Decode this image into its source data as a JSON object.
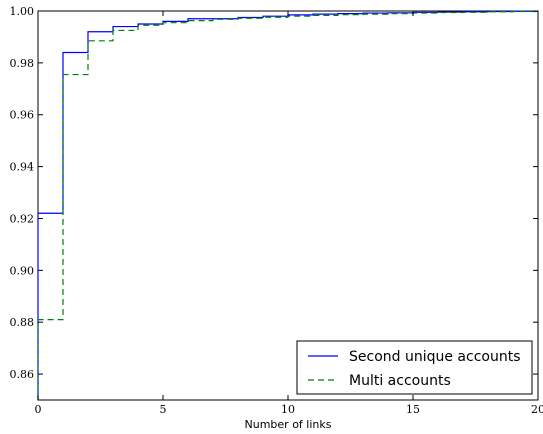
{
  "chart_data": {
    "type": "line",
    "title": "",
    "xlabel": "Number of links",
    "ylabel": "",
    "xlim": [
      0,
      20
    ],
    "ylim": [
      0.85,
      1.0
    ],
    "xticks": [
      0,
      5,
      10,
      15,
      20
    ],
    "xtick_labels": [
      "0",
      "5",
      "10",
      "15",
      "20"
    ],
    "yticks": [
      0.86,
      0.88,
      0.9,
      0.92,
      0.94,
      0.96,
      0.98,
      1.0
    ],
    "ytick_labels": [
      "0.86",
      "0.88",
      "0.90",
      "0.92",
      "0.94",
      "0.96",
      "0.98",
      "1.00"
    ],
    "grid": false,
    "legend_position": "bottom-right",
    "step": "post",
    "series": [
      {
        "name": "Second unique accounts",
        "color": "#0000ff",
        "dash": "solid",
        "x": [
          0,
          1,
          2,
          3,
          4,
          5,
          6,
          7,
          8,
          9,
          10,
          11,
          12,
          13,
          14,
          15,
          16,
          17,
          18,
          19,
          20
        ],
        "y": [
          0.922,
          0.984,
          0.992,
          0.994,
          0.995,
          0.996,
          0.997,
          0.997,
          0.9975,
          0.998,
          0.9985,
          0.9988,
          0.999,
          0.9992,
          0.9993,
          0.9995,
          0.9996,
          0.9997,
          0.9998,
          0.9999,
          0.9999
        ]
      },
      {
        "name": "Multi accounts",
        "color": "#008000",
        "dash": "dashed",
        "x": [
          0,
          1,
          2,
          3,
          4,
          5,
          6,
          7,
          8,
          9,
          10,
          11,
          12,
          13,
          14,
          15,
          16,
          17,
          18,
          19,
          20
        ],
        "y": [
          0.881,
          0.9755,
          0.9885,
          0.9925,
          0.9945,
          0.9955,
          0.9963,
          0.9968,
          0.9972,
          0.9976,
          0.998,
          0.9983,
          0.9986,
          0.9988,
          0.999,
          0.9992,
          0.9994,
          0.9995,
          0.9997,
          0.9998,
          0.9999
        ]
      }
    ]
  }
}
